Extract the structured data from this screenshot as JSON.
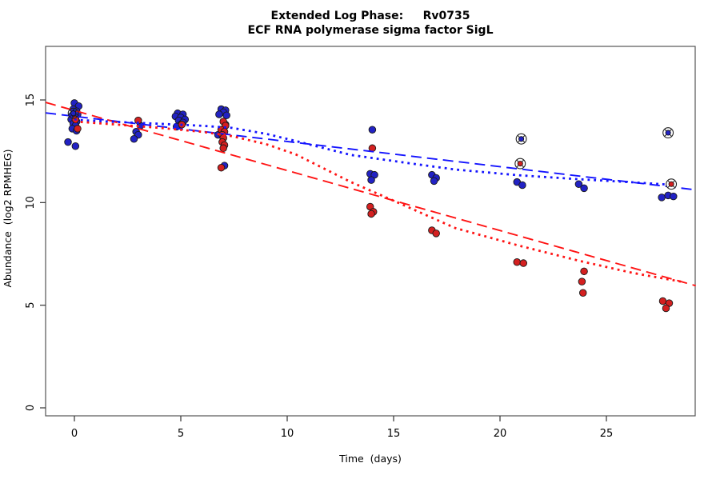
{
  "chart_data": {
    "type": "scatter",
    "title": "Extended Log Phase:     Rv0735",
    "subtitle": "ECF RNA polymerase sigma factor SigL",
    "xlabel": "Time  (days)",
    "ylabel": "Abundance  (log2 RPMHEG)",
    "x_ticks": [
      0,
      5,
      10,
      15,
      20,
      25
    ],
    "y_ticks": [
      0,
      5,
      10,
      15
    ],
    "xlim": [
      -1.5,
      29.5
    ],
    "ylim": [
      -0.5,
      17.6
    ],
    "grid": false,
    "legend": "none",
    "series": [
      {
        "name": "blue-points",
        "marker_color": "#2222c4",
        "points": [
          [
            0,
            14.85
          ],
          [
            0.2,
            14.7
          ],
          [
            -0.05,
            14.55
          ],
          [
            0.1,
            14.45
          ],
          [
            0.15,
            14.3
          ],
          [
            -0.1,
            14.25
          ],
          [
            0.05,
            14.15
          ],
          [
            -0.15,
            14.05
          ],
          [
            0.1,
            13.95
          ],
          [
            -0.05,
            13.85
          ],
          [
            0.05,
            13.75
          ],
          [
            -0.1,
            13.6
          ],
          [
            0.1,
            13.5
          ],
          [
            -0.3,
            12.95
          ],
          [
            0.05,
            12.75
          ],
          [
            3.1,
            13.75
          ],
          [
            2.9,
            13.45
          ],
          [
            3.0,
            13.3
          ],
          [
            2.8,
            13.1
          ],
          [
            4.85,
            14.35
          ],
          [
            5.1,
            14.3
          ],
          [
            4.75,
            14.2
          ],
          [
            5.0,
            14.15
          ],
          [
            5.2,
            14.05
          ],
          [
            4.9,
            14.0
          ],
          [
            5.1,
            13.9
          ],
          [
            5.0,
            13.8
          ],
          [
            4.8,
            13.7
          ],
          [
            6.9,
            14.55
          ],
          [
            7.1,
            14.5
          ],
          [
            7.0,
            14.4
          ],
          [
            6.8,
            14.3
          ],
          [
            7.15,
            14.25
          ],
          [
            7.1,
            13.8
          ],
          [
            6.75,
            13.3
          ],
          [
            7.05,
            11.8
          ],
          [
            14.0,
            13.55
          ],
          [
            13.9,
            11.4
          ],
          [
            14.1,
            11.35
          ],
          [
            13.95,
            11.1
          ],
          [
            16.8,
            11.35
          ],
          [
            17.0,
            11.2
          ],
          [
            16.9,
            11.05
          ],
          [
            20.8,
            11.0
          ],
          [
            21.05,
            10.85
          ],
          [
            23.7,
            10.9
          ],
          [
            23.95,
            10.7
          ],
          [
            27.6,
            10.25
          ],
          [
            27.9,
            10.35
          ],
          [
            28.15,
            10.3
          ]
        ]
      },
      {
        "name": "red-points",
        "marker_color": "#d42020",
        "points": [
          [
            0.05,
            14.05
          ],
          [
            0.15,
            13.6
          ],
          [
            3.0,
            14.0
          ],
          [
            5.05,
            13.8
          ],
          [
            7.0,
            13.95
          ],
          [
            7.1,
            13.75
          ],
          [
            6.9,
            13.55
          ],
          [
            7.05,
            13.45
          ],
          [
            6.95,
            13.3
          ],
          [
            7.0,
            13.15
          ],
          [
            6.95,
            12.95
          ],
          [
            7.05,
            12.8
          ],
          [
            7.0,
            12.65
          ],
          [
            6.9,
            11.7
          ],
          [
            14.0,
            12.65
          ],
          [
            13.9,
            9.8
          ],
          [
            14.05,
            9.55
          ],
          [
            13.95,
            9.45
          ],
          [
            16.8,
            8.65
          ],
          [
            17.0,
            8.5
          ],
          [
            20.8,
            7.1
          ],
          [
            21.1,
            7.05
          ],
          [
            23.95,
            6.65
          ],
          [
            23.85,
            6.15
          ],
          [
            23.9,
            5.6
          ],
          [
            27.65,
            5.2
          ],
          [
            27.95,
            5.1
          ],
          [
            27.8,
            4.85
          ]
        ]
      }
    ],
    "flagged_points": [
      {
        "series": "blue",
        "x": -0.05,
        "y": 14.35,
        "fill": "none"
      },
      {
        "series": "blue",
        "x": 21.0,
        "y": 13.1,
        "fill": "#ffffff"
      },
      {
        "series": "red",
        "x": 20.95,
        "y": 11.9,
        "fill": "#ffffff"
      },
      {
        "series": "blue",
        "x": 27.9,
        "y": 13.4,
        "fill": "#ffffff"
      },
      {
        "series": "red",
        "x": 28.05,
        "y": 10.9,
        "fill": "#ffffff"
      }
    ],
    "trend_lines": [
      {
        "name": "blue-linear-fit",
        "style": "longdash",
        "color": "#1414ff",
        "points": [
          [
            -1.35,
            14.37
          ],
          [
            29.2,
            10.62
          ]
        ]
      },
      {
        "name": "red-linear-fit",
        "style": "longdash",
        "color": "#ff1414",
        "points": [
          [
            -1.35,
            14.88
          ],
          [
            29.2,
            5.95
          ]
        ]
      },
      {
        "name": "blue-smooth-fit",
        "style": "dotted",
        "color": "#1414ff",
        "points": [
          [
            0,
            14.03
          ],
          [
            2,
            13.93
          ],
          [
            4,
            13.84
          ],
          [
            6,
            13.74
          ],
          [
            7.4,
            13.64
          ],
          [
            9,
            13.35
          ],
          [
            10.4,
            13.0
          ],
          [
            13,
            12.32
          ],
          [
            15.7,
            11.92
          ],
          [
            17.9,
            11.61
          ],
          [
            20.9,
            11.33
          ],
          [
            23.7,
            11.14
          ],
          [
            26.2,
            10.99
          ],
          [
            28,
            10.87
          ]
        ]
      },
      {
        "name": "red-smooth-fit",
        "style": "dotted",
        "color": "#ff1414",
        "points": [
          [
            0,
            13.95
          ],
          [
            2,
            13.8
          ],
          [
            4,
            13.64
          ],
          [
            6,
            13.45
          ],
          [
            7.4,
            13.24
          ],
          [
            9,
            12.85
          ],
          [
            10.4,
            12.35
          ],
          [
            13,
            11.0
          ],
          [
            15.2,
            10.0
          ],
          [
            17.9,
            8.76
          ],
          [
            20.9,
            7.9
          ],
          [
            23.7,
            7.17
          ],
          [
            26.2,
            6.58
          ],
          [
            28.5,
            6.15
          ]
        ]
      }
    ],
    "colors": {
      "blue_marker": "#2222c4",
      "red_marker": "#d42020",
      "blue_line": "#1414ff",
      "red_line": "#ff1414",
      "marker_edge": "#1a1a1a",
      "box_edge": "#555555"
    }
  }
}
